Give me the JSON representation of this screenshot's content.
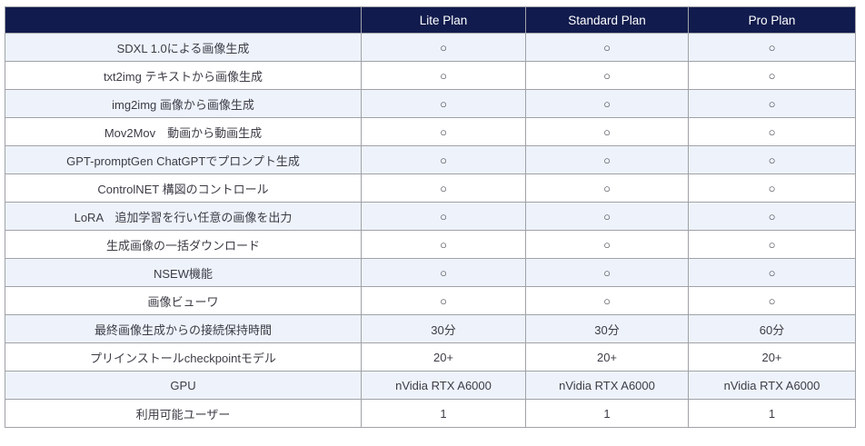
{
  "table": {
    "header": {
      "feature_label": "",
      "plans": [
        "Lite Plan",
        "Standard Plan",
        "Pro Plan"
      ]
    },
    "rows": [
      {
        "feature": "SDXL 1.0による画像生成",
        "values": [
          "○",
          "○",
          "○"
        ]
      },
      {
        "feature": "txt2img テキストから画像生成",
        "values": [
          "○",
          "○",
          "○"
        ]
      },
      {
        "feature": "img2img 画像から画像生成",
        "values": [
          "○",
          "○",
          "○"
        ]
      },
      {
        "feature": "Mov2Mov　動画から動画生成",
        "values": [
          "○",
          "○",
          "○"
        ]
      },
      {
        "feature": "GPT-promptGen ChatGPTでプロンプト生成",
        "values": [
          "○",
          "○",
          "○"
        ]
      },
      {
        "feature": "ControlNET 構図のコントロール",
        "values": [
          "○",
          "○",
          "○"
        ]
      },
      {
        "feature": "LoRA　追加学習を行い任意の画像を出力",
        "values": [
          "○",
          "○",
          "○"
        ]
      },
      {
        "feature": "生成画像の一括ダウンロード",
        "values": [
          "○",
          "○",
          "○"
        ]
      },
      {
        "feature": "NSEW機能",
        "values": [
          "○",
          "○",
          "○"
        ]
      },
      {
        "feature": "画像ビューワ",
        "values": [
          "○",
          "○",
          "○"
        ]
      },
      {
        "feature": "最終画像生成からの接続保持時間",
        "values": [
          "30分",
          "30分",
          "60分"
        ]
      },
      {
        "feature": "プリインストールcheckpointモデル",
        "values": [
          "20+",
          "20+",
          "20+"
        ]
      },
      {
        "feature": "GPU",
        "values": [
          "nVidia RTX A6000",
          "nVidia RTX A6000",
          "nVidia RTX A6000"
        ]
      },
      {
        "feature": "利用可能ユーザー",
        "values": [
          "1",
          "1",
          "1"
        ]
      }
    ],
    "colors": {
      "header_bg": "#111b4d",
      "header_text": "#ffffff",
      "row_alt_bg": "#eef3fb",
      "row_bg": "#ffffff",
      "border": "#a0a2a8",
      "text": "#3c3c46"
    }
  }
}
